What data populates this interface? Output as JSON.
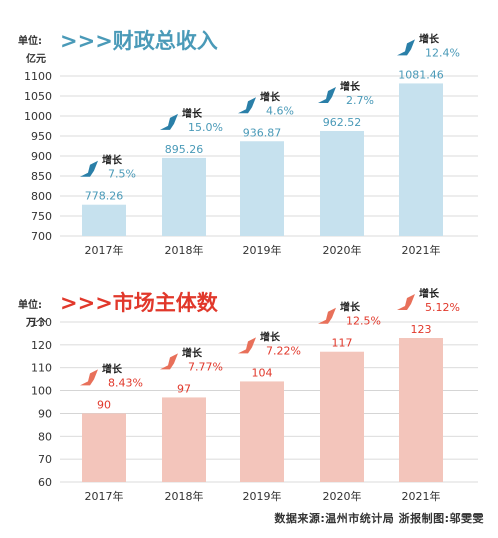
{
  "chart_data": [
    {
      "type": "bar",
      "title": ">>>财政总收入",
      "unit_label": "单位:",
      "unit_value": "亿元",
      "categories": [
        "2017年",
        "2018年",
        "2019年",
        "2020年",
        "2021年"
      ],
      "values": [
        778.26,
        895.26,
        936.87,
        962.52,
        1081.46
      ],
      "value_labels": [
        "778.26",
        "895.26",
        "936.87",
        "962.52",
        "1081.46"
      ],
      "growth_label": "增长",
      "growth": [
        "7.5%",
        "15.0%",
        "4.6%",
        "2.7%",
        "12.4%"
      ],
      "yticks": [
        "700",
        "750",
        "800",
        "850",
        "900",
        "950",
        "1000",
        "1050",
        "1100"
      ],
      "ylim": [
        700,
        1100
      ],
      "colors": {
        "bar": "#c6e1ee",
        "title": "#4a9ab8",
        "label": "#4a9ab8",
        "arrow": "#2a7fa8"
      }
    },
    {
      "type": "bar",
      "title": ">>>市场主体数",
      "unit_label": "单位:",
      "unit_value": "万个",
      "categories": [
        "2017年",
        "2018年",
        "2019年",
        "2020年",
        "2021年"
      ],
      "values": [
        90,
        97,
        104,
        117,
        123
      ],
      "value_labels": [
        "90",
        "97",
        "104",
        "117",
        "123"
      ],
      "growth_label": "增长",
      "growth": [
        "8.43%",
        "7.77%",
        "7.22%",
        "12.5%",
        "5.12%"
      ],
      "yticks": [
        "60",
        "70",
        "80",
        "90",
        "100",
        "110",
        "120",
        "130"
      ],
      "ylim": [
        60,
        130
      ],
      "colors": {
        "bar": "#f3c5bb",
        "title": "#e1382b",
        "label": "#e1382b",
        "arrow": "#e8705a"
      }
    }
  ],
  "credit": "数据来源:温州市统计局  浙报制图:邬雯雯"
}
